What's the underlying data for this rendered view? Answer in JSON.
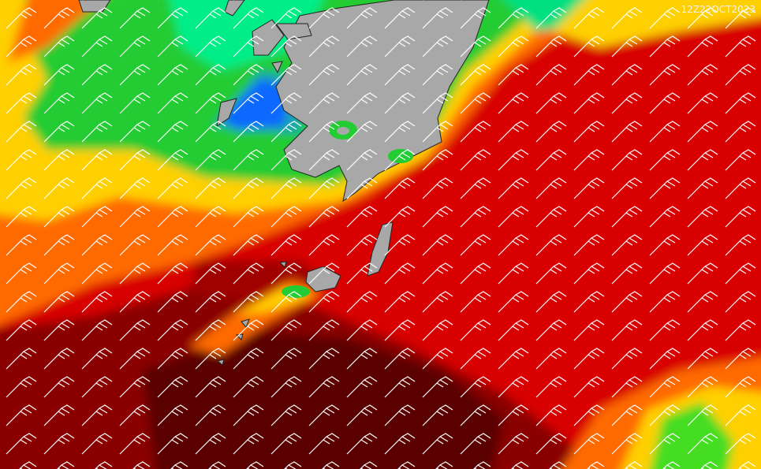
{
  "timestamp": "12Z22OCT2023"
}
